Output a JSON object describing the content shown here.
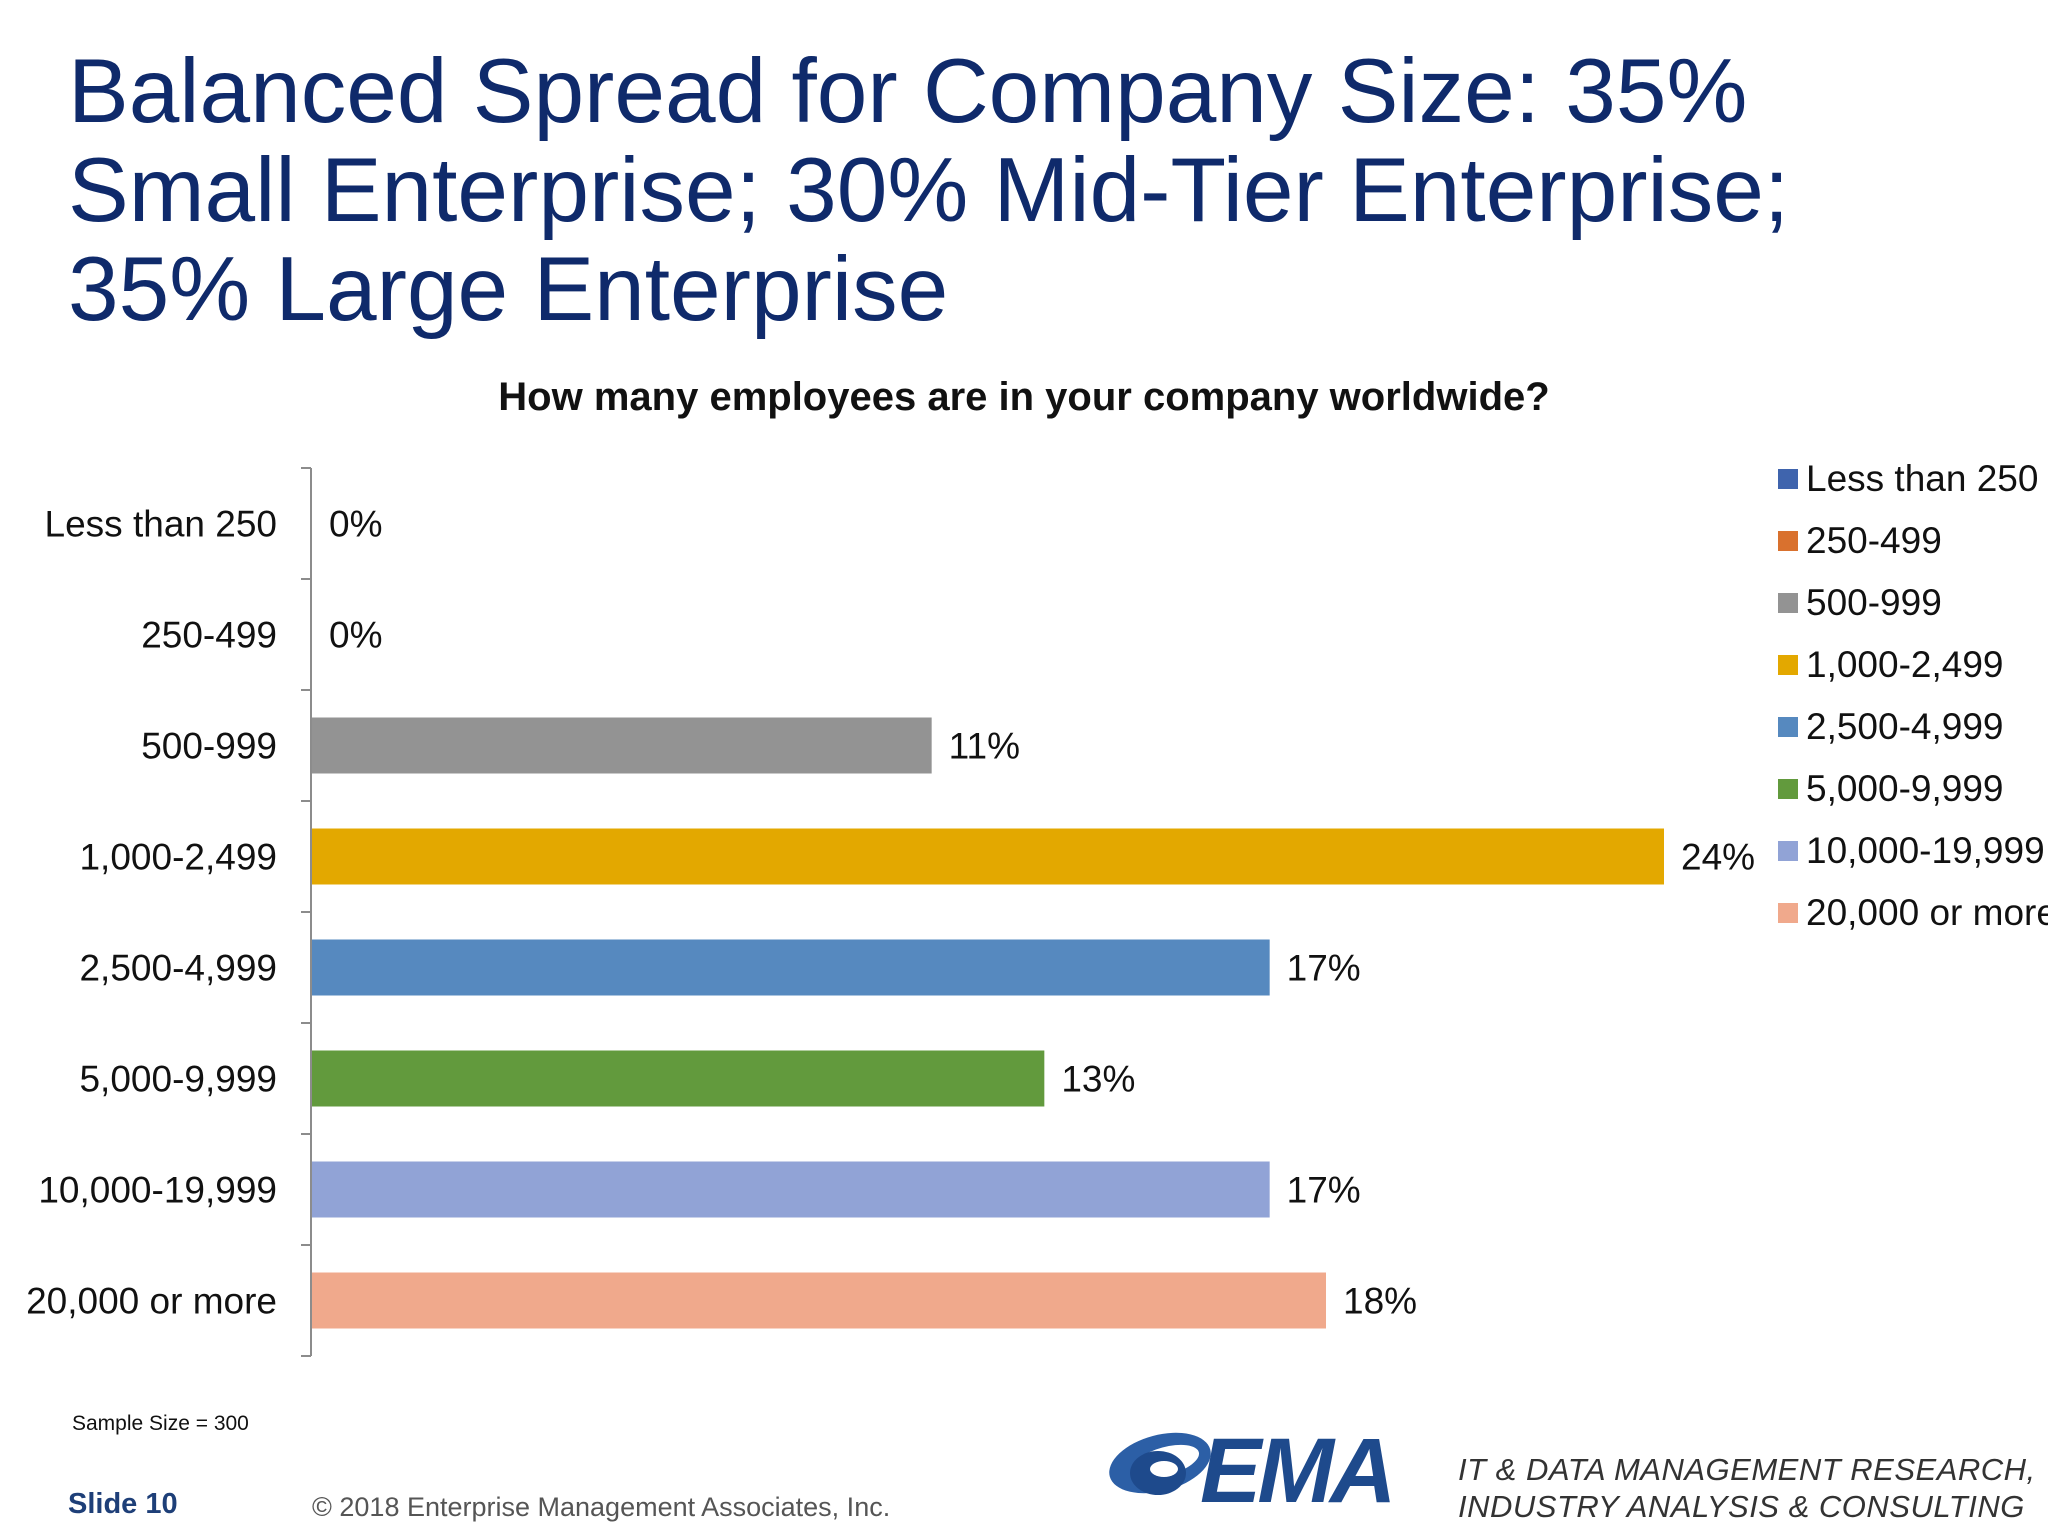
{
  "slide": {
    "title_lines": [
      "Balanced Spread for Company Size: 35%",
      "Small Enterprise; 30% Mid-Tier Enterprise;",
      "35% Large Enterprise"
    ],
    "sample_size": "Sample Size = 300",
    "slide_number": "Slide 10",
    "copyright": "© 2018 Enterprise Management Associates, Inc.",
    "logo_text": "EMA",
    "tagline_lines": [
      "IT & DATA MANAGEMENT RESEARCH,",
      "INDUSTRY ANALYSIS & CONSULTING"
    ]
  },
  "chart_data": {
    "type": "bar",
    "orientation": "horizontal",
    "title": "How many employees are in your company worldwide?",
    "categories": [
      "Less than 250",
      "250-499",
      "500-999",
      "1,000-2,499",
      "2,500-4,999",
      "5,000-9,999",
      "10,000-19,999",
      "20,000 or more"
    ],
    "values": [
      0,
      0,
      11,
      24,
      17,
      13,
      17,
      18
    ],
    "value_labels": [
      "0%",
      "0%",
      "11%",
      "24%",
      "17%",
      "13%",
      "17%",
      "18%"
    ],
    "colors": [
      "#3f64ad",
      "#d9712e",
      "#939393",
      "#e3a800",
      "#5689bf",
      "#629a3d",
      "#91a3d6",
      "#f0a98c"
    ],
    "xlim": [
      0,
      24
    ],
    "grid": false,
    "legend_position": "right"
  }
}
